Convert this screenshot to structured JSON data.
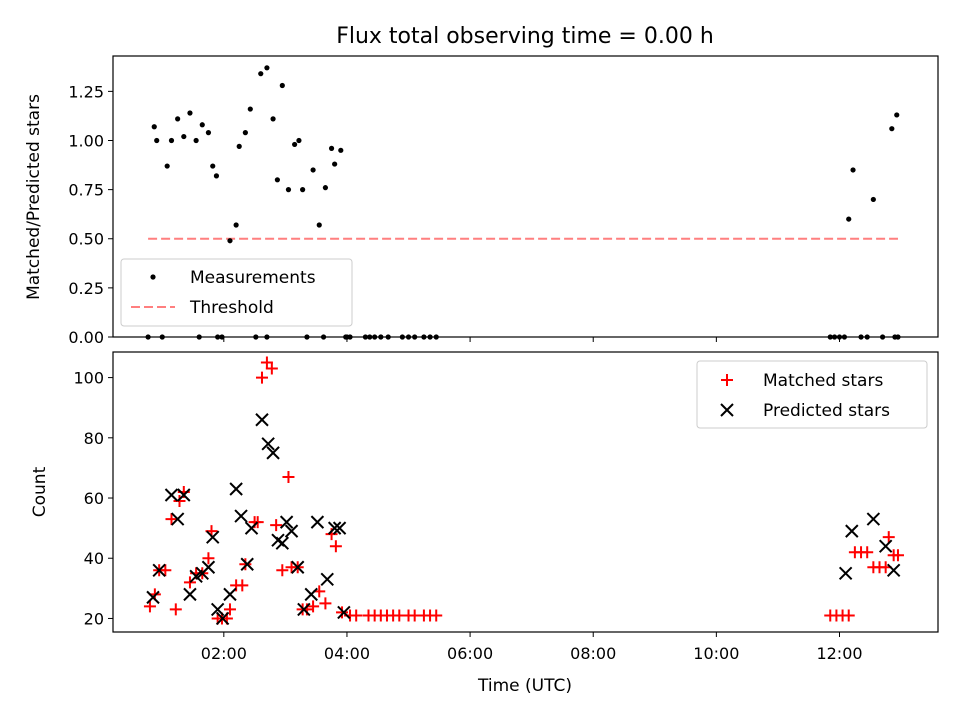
{
  "chart_data": [
    {
      "type": "scatter",
      "title": "Flux total observing time = 0.00 h",
      "xlabel": "",
      "ylabel": "Matched/Predicted stars",
      "ylim": [
        0,
        1.43
      ],
      "xlim": [
        0.2,
        13.6
      ],
      "yticks": [
        "0.00",
        "0.25",
        "0.50",
        "0.75",
        "1.00",
        "1.25"
      ],
      "legend_position": "lower-left",
      "legend": [
        "Measurements",
        "Threshold"
      ],
      "series": [
        {
          "name": "Measurements",
          "color": "#000000",
          "marker": "dot",
          "x": [
            0.87,
            0.91,
            1.08,
            1.15,
            1.25,
            1.35,
            1.45,
            1.55,
            1.65,
            1.75,
            1.82,
            1.88,
            2.1,
            2.2,
            2.25,
            2.35,
            2.43,
            2.6,
            2.7,
            2.8,
            2.87,
            2.95,
            3.05,
            3.15,
            3.22,
            3.28,
            3.45,
            3.55,
            3.65,
            3.75,
            3.8,
            3.9,
            12.15,
            12.22,
            12.55,
            12.85,
            12.93,
            0.77,
            1.0,
            1.6,
            1.9,
            1.97,
            2.52,
            2.7,
            3.35,
            3.62,
            3.98,
            4.0,
            4.05,
            4.3,
            4.37,
            4.45,
            4.55,
            4.67,
            4.9,
            5.0,
            5.1,
            5.25,
            5.35,
            5.45,
            11.85,
            11.92,
            12.0,
            12.08,
            12.35,
            12.45,
            12.7,
            12.9,
            12.95
          ],
          "y": [
            1.07,
            1.0,
            0.87,
            1.0,
            1.11,
            1.02,
            1.14,
            1.0,
            1.08,
            1.04,
            0.87,
            0.82,
            0.49,
            0.57,
            0.97,
            1.04,
            1.16,
            1.34,
            1.37,
            1.11,
            0.8,
            1.28,
            0.75,
            0.98,
            1.0,
            0.75,
            0.85,
            0.57,
            0.76,
            0.96,
            0.88,
            0.95,
            0.6,
            0.85,
            0.7,
            1.06,
            1.13,
            0,
            0,
            0,
            0,
            0,
            0,
            0,
            0,
            0,
            0,
            0,
            0,
            0,
            0,
            0,
            0,
            0,
            0,
            0,
            0,
            0,
            0,
            0,
            0,
            0,
            0,
            0,
            0,
            0,
            0,
            0,
            0
          ]
        },
        {
          "name": "Threshold",
          "color": "#ff7f7f",
          "style": "dashed",
          "x": [
            0.77,
            12.95
          ],
          "y": [
            0.5,
            0.5
          ]
        }
      ]
    },
    {
      "type": "scatter",
      "title": "",
      "xlabel": "Time (UTC)",
      "ylabel": "Count",
      "ylim": [
        15.5,
        108.5
      ],
      "xlim": [
        0.2,
        13.6
      ],
      "yticks": [
        "20",
        "40",
        "60",
        "80",
        "100"
      ],
      "xticks": [
        {
          "v": 2,
          "label": "02:00"
        },
        {
          "v": 4,
          "label": "04:00"
        },
        {
          "v": 6,
          "label": "06:00"
        },
        {
          "v": 8,
          "label": "08:00"
        },
        {
          "v": 10,
          "label": "10:00"
        },
        {
          "v": 12,
          "label": "12:00"
        }
      ],
      "legend_position": "upper-right",
      "legend": [
        "Matched stars",
        "Predicted stars"
      ],
      "series": [
        {
          "name": "Matched stars",
          "color": "#ff0000",
          "marker": "plus",
          "x": [
            0.8,
            0.88,
            0.95,
            1.05,
            1.15,
            1.22,
            1.28,
            1.35,
            1.45,
            1.55,
            1.65,
            1.75,
            1.8,
            1.9,
            1.97,
            2.05,
            2.1,
            2.2,
            2.3,
            2.35,
            2.5,
            2.55,
            2.62,
            2.7,
            2.78,
            2.85,
            2.95,
            3.05,
            3.1,
            3.2,
            3.28,
            3.35,
            3.45,
            3.55,
            3.65,
            3.75,
            3.82,
            3.92,
            4.05,
            4.15,
            4.35,
            4.45,
            4.55,
            4.65,
            4.75,
            4.85,
            5.0,
            5.1,
            5.25,
            5.35,
            5.45,
            11.85,
            11.95,
            12.05,
            12.15,
            12.25,
            12.35,
            12.45,
            12.55,
            12.65,
            12.75,
            12.8,
            12.88,
            12.95
          ],
          "y": [
            24,
            28,
            36,
            36,
            53,
            23,
            59,
            62,
            32,
            35,
            35,
            40,
            49,
            20,
            20,
            20,
            23,
            31,
            31,
            38,
            52,
            52,
            100,
            105,
            103,
            51,
            36,
            67,
            37,
            37,
            23,
            23,
            24,
            29,
            25,
            48,
            44,
            22,
            21,
            21,
            21,
            21,
            21,
            21,
            21,
            21,
            21,
            21,
            21,
            21,
            21,
            21,
            21,
            21,
            21,
            42,
            42,
            42,
            37,
            37,
            37,
            47,
            41,
            41
          ]
        },
        {
          "name": "Predicted stars",
          "color": "#000000",
          "marker": "x",
          "x": [
            0.85,
            0.95,
            1.15,
            1.25,
            1.35,
            1.45,
            1.55,
            1.65,
            1.75,
            1.82,
            1.9,
            1.98,
            2.1,
            2.2,
            2.28,
            2.38,
            2.45,
            2.62,
            2.72,
            2.8,
            2.88,
            2.95,
            3.02,
            3.1,
            3.2,
            3.3,
            3.42,
            3.52,
            3.68,
            3.8,
            3.88,
            3.95,
            12.1,
            12.2,
            12.55,
            12.75,
            12.88
          ],
          "y": [
            27,
            36,
            61,
            53,
            61,
            28,
            34,
            35,
            37,
            47,
            23,
            20,
            28,
            63,
            54,
            38,
            50,
            86,
            78,
            75,
            46,
            45,
            52,
            49,
            37,
            23,
            28,
            52,
            33,
            50,
            50,
            22,
            35,
            49,
            53,
            44,
            36
          ]
        }
      ]
    }
  ]
}
